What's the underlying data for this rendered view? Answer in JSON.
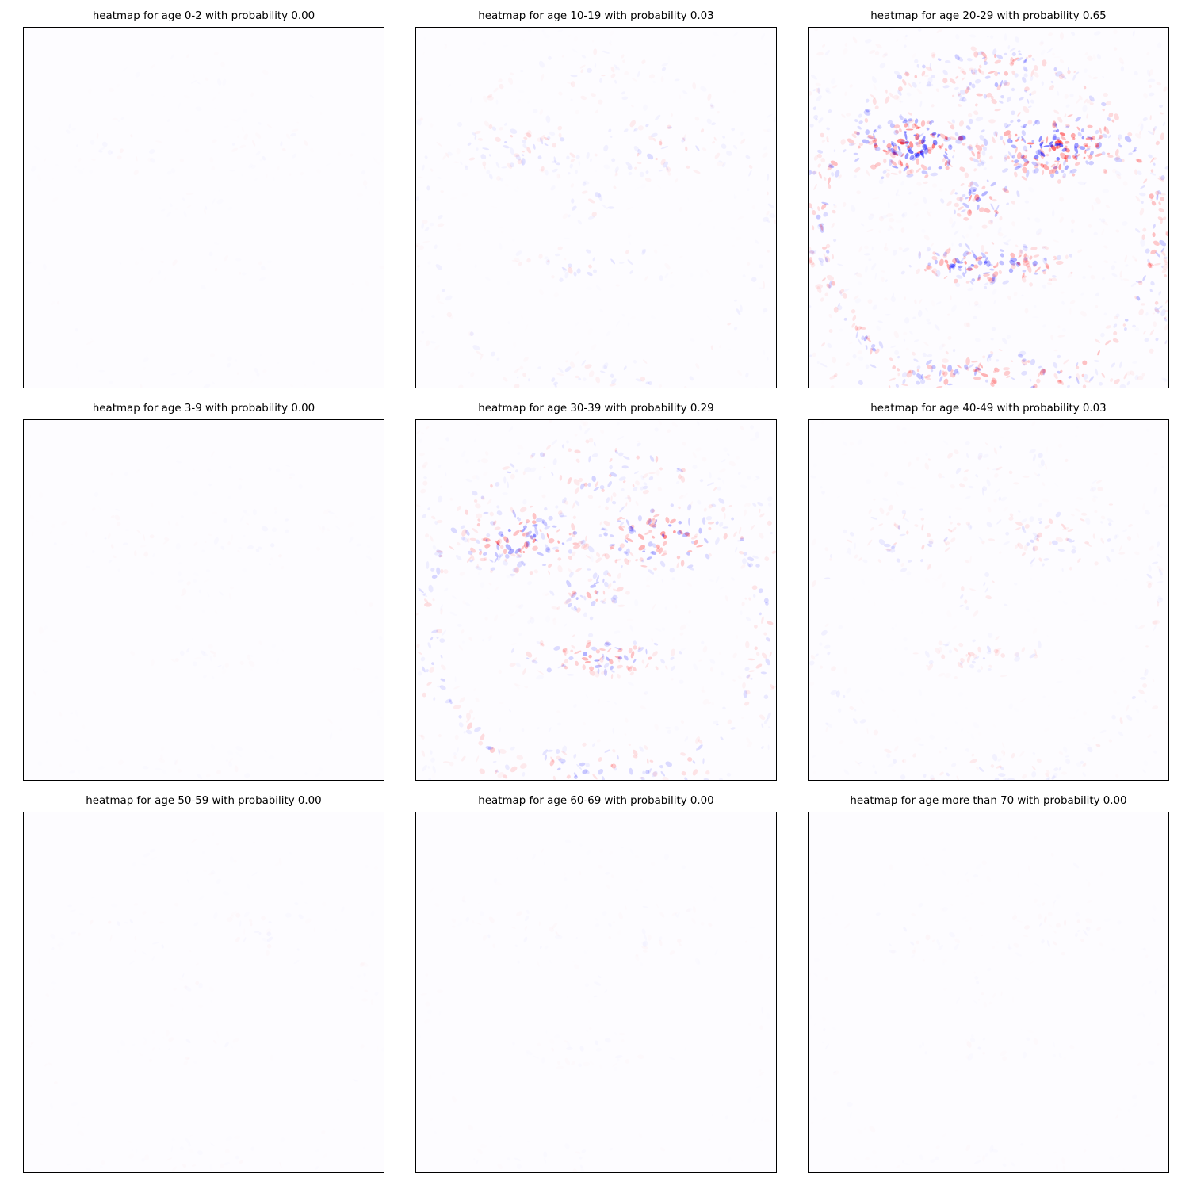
{
  "chart_data": [
    {
      "type": "heatmap",
      "title": "heatmap for age 0-2 with probability 0.00",
      "probability": 0.0,
      "colormap": [
        "#0000ff",
        "#ffffff",
        "#ff0000"
      ],
      "grid": false
    },
    {
      "type": "heatmap",
      "title": "heatmap for age 10-19 with probability 0.03",
      "probability": 0.03,
      "colormap": [
        "#0000ff",
        "#ffffff",
        "#ff0000"
      ],
      "grid": false
    },
    {
      "type": "heatmap",
      "title": "heatmap for age 20-29 with probability 0.65",
      "probability": 0.65,
      "colormap": [
        "#0000ff",
        "#ffffff",
        "#ff0000"
      ],
      "grid": false
    },
    {
      "type": "heatmap",
      "title": "heatmap for age 3-9 with probability 0.00",
      "probability": 0.0,
      "colormap": [
        "#0000ff",
        "#ffffff",
        "#ff0000"
      ],
      "grid": false
    },
    {
      "type": "heatmap",
      "title": "heatmap for age 30-39 with probability 0.29",
      "probability": 0.29,
      "colormap": [
        "#0000ff",
        "#ffffff",
        "#ff0000"
      ],
      "grid": false
    },
    {
      "type": "heatmap",
      "title": "heatmap for age 40-49 with probability 0.03",
      "probability": 0.03,
      "colormap": [
        "#0000ff",
        "#ffffff",
        "#ff0000"
      ],
      "grid": false
    },
    {
      "type": "heatmap",
      "title": "heatmap for age 50-59 with probability 0.00",
      "probability": 0.0,
      "colormap": [
        "#0000ff",
        "#ffffff",
        "#ff0000"
      ],
      "grid": false
    },
    {
      "type": "heatmap",
      "title": "heatmap for age 60-69 with probability 0.00",
      "probability": 0.0,
      "colormap": [
        "#0000ff",
        "#ffffff",
        "#ff0000"
      ],
      "grid": false
    },
    {
      "type": "heatmap",
      "title": "heatmap for age more than 70 with probability 0.00",
      "probability": 0.0,
      "colormap": [
        "#0000ff",
        "#ffffff",
        "#ff0000"
      ],
      "grid": false
    }
  ]
}
